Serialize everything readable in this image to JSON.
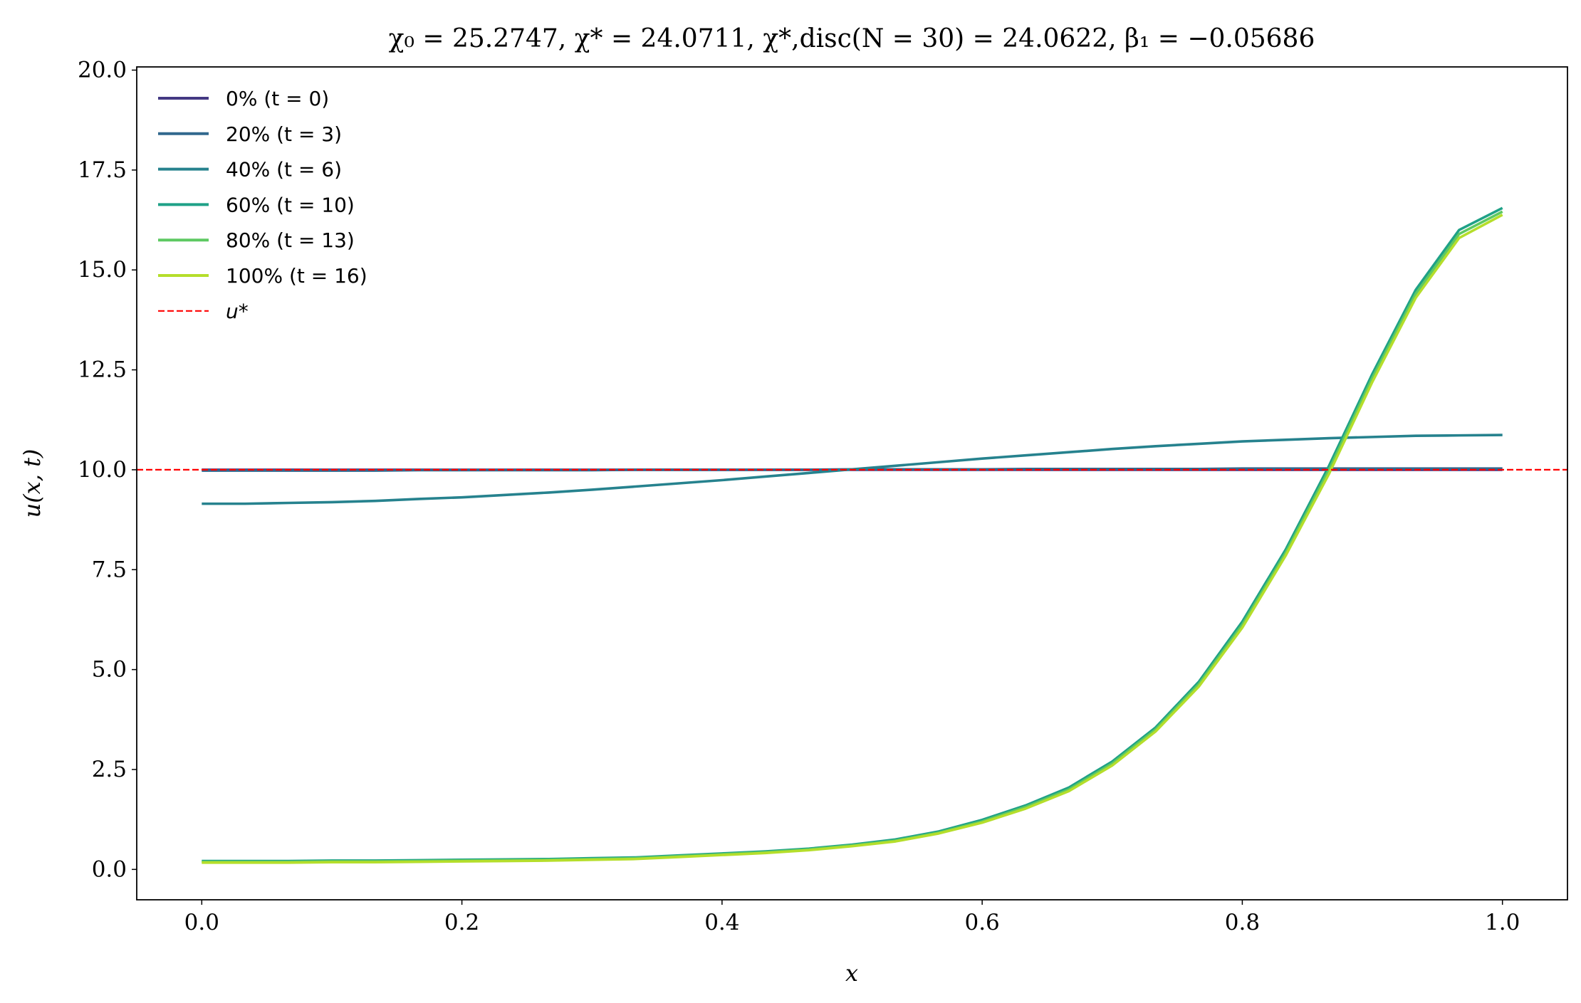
{
  "chart_data": {
    "type": "line",
    "title": "χ₀ = 25.2747,  χ* = 24.0711,  χ*,disc(N = 30) = 24.0622,  β₁ = −0.05686",
    "x_label": "x",
    "y_label": "u(x, t)",
    "x": [
      0,
      0.0333,
      0.0667,
      0.1,
      0.1333,
      0.1667,
      0.2,
      0.2333,
      0.2667,
      0.3,
      0.3333,
      0.3667,
      0.4,
      0.4333,
      0.4667,
      0.5,
      0.5333,
      0.5667,
      0.6,
      0.6333,
      0.6667,
      0.7,
      0.7333,
      0.7667,
      0.8,
      0.8333,
      0.8667,
      0.9,
      0.9333,
      0.9667,
      1
    ],
    "series": [
      {
        "name": "0% (t = 0)",
        "color": "#443983",
        "values": [
          10,
          10,
          10,
          10,
          10,
          10,
          10,
          10,
          10,
          10,
          10,
          10,
          10,
          10,
          10,
          10,
          10,
          10,
          10,
          10,
          10,
          10,
          10,
          10,
          10,
          10,
          10,
          10,
          10,
          10,
          10
        ]
      },
      {
        "name": "20% (t = 3)",
        "color": "#31688e",
        "values": [
          9.98,
          9.98,
          9.98,
          9.98,
          9.98,
          9.99,
          9.99,
          9.99,
          9.99,
          9.99,
          10,
          10,
          10,
          10,
          10,
          10.01,
          10.01,
          10.01,
          10.01,
          10.02,
          10.02,
          10.02,
          10.02,
          10.02,
          10.03,
          10.03,
          10.03,
          10.03,
          10.03,
          10.03,
          10.03
        ]
      },
      {
        "name": "40% (t = 6)",
        "color": "#26828e",
        "values": [
          9.15,
          9.15,
          9.17,
          9.19,
          9.22,
          9.27,
          9.31,
          9.37,
          9.43,
          9.5,
          9.58,
          9.66,
          9.74,
          9.83,
          9.92,
          10.01,
          10.1,
          10.19,
          10.28,
          10.36,
          10.44,
          10.52,
          10.59,
          10.65,
          10.71,
          10.75,
          10.79,
          10.82,
          10.85,
          10.86,
          10.87
        ]
      },
      {
        "name": "60% (t = 10)",
        "color": "#1fa187",
        "values": [
          0.21,
          0.21,
          0.21,
          0.22,
          0.22,
          0.23,
          0.24,
          0.25,
          0.26,
          0.28,
          0.3,
          0.35,
          0.4,
          0.45,
          0.52,
          0.62,
          0.75,
          0.95,
          1.24,
          1.6,
          2.05,
          2.7,
          3.55,
          4.7,
          6.2,
          8.0,
          10.1,
          12.4,
          14.5,
          16.0,
          16.55
        ]
      },
      {
        "name": "80% (t = 13)",
        "color": "#5ec962",
        "values": [
          0.19,
          0.19,
          0.19,
          0.2,
          0.2,
          0.21,
          0.22,
          0.23,
          0.24,
          0.26,
          0.28,
          0.33,
          0.38,
          0.43,
          0.5,
          0.6,
          0.72,
          0.92,
          1.2,
          1.56,
          2.0,
          2.65,
          3.5,
          4.64,
          6.12,
          7.92,
          10.0,
          12.3,
          14.4,
          15.9,
          16.46
        ]
      },
      {
        "name": "100% (t = 16)",
        "color": "#b5de2b",
        "values": [
          0.17,
          0.17,
          0.17,
          0.18,
          0.18,
          0.19,
          0.2,
          0.21,
          0.22,
          0.24,
          0.26,
          0.31,
          0.36,
          0.41,
          0.48,
          0.58,
          0.7,
          0.9,
          1.17,
          1.52,
          1.96,
          2.6,
          3.45,
          4.58,
          6.05,
          7.85,
          9.9,
          12.2,
          14.3,
          15.8,
          16.38
        ]
      }
    ],
    "hlines": [
      {
        "name": "u*",
        "value": 10,
        "color": "#ff0000",
        "dashed": true
      }
    ],
    "xlim": [
      -0.05,
      1.05
    ],
    "ylim": [
      -0.76,
      20.08
    ],
    "xticks": [
      {
        "value": 0,
        "label": "0.0"
      },
      0.2,
      0.4,
      0.6,
      0.8,
      {
        "value": 1,
        "label": "1.0"
      }
    ],
    "yticks": [
      {
        "value": 0,
        "label": "0.0"
      },
      2.5,
      {
        "value": 5,
        "label": "5.0"
      },
      7.5,
      {
        "value": 10,
        "label": "10.0"
      },
      12.5,
      {
        "value": 15,
        "label": "15.0"
      },
      17.5,
      {
        "value": 20,
        "label": "20.0"
      }
    ],
    "legend": "upper left",
    "grid": false
  }
}
